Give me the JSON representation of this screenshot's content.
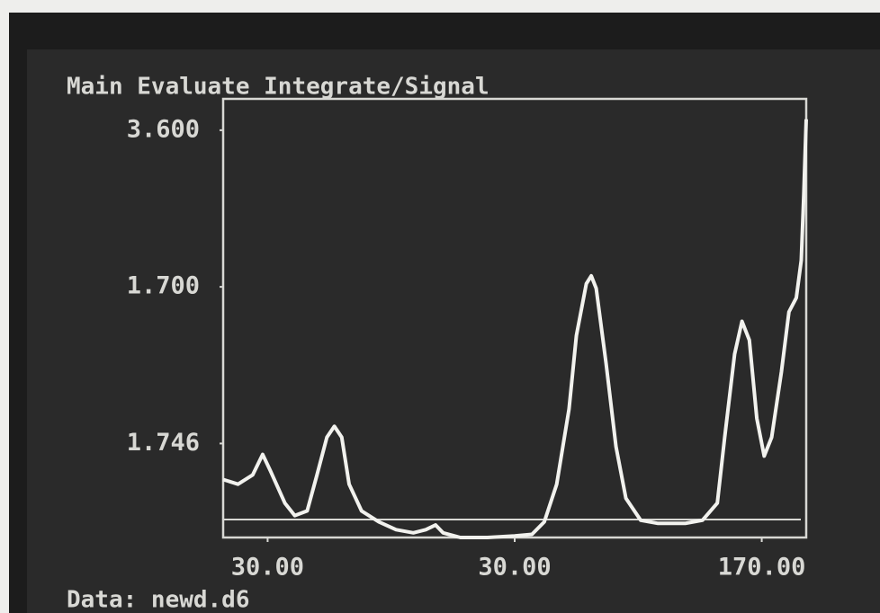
{
  "chart_data": {
    "type": "line",
    "title": "Main Evaluate Integrate/Signal",
    "annotation": "Data: newd.d6",
    "x": [
      0.82,
      0.88,
      0.94,
      0.98,
      1.01,
      1.07,
      1.11,
      1.16,
      1.2,
      1.24,
      1.27,
      1.3,
      1.33,
      1.38,
      1.45,
      1.52,
      1.59,
      1.64,
      1.68,
      1.71,
      1.78,
      1.89,
      2.0,
      2.07,
      2.12,
      2.17,
      2.22,
      2.25,
      2.29,
      2.31,
      2.33,
      2.37,
      2.41,
      2.45,
      2.51,
      2.58,
      2.69,
      2.76,
      2.82,
      2.85,
      2.89,
      2.92,
      2.95,
      2.98,
      3.01,
      3.04,
      3.08,
      3.11,
      3.14,
      3.16,
      3.17,
      3.18
    ],
    "series": [
      {
        "color": "#f2f2ee",
        "values": [
          0.77,
          0.74,
          0.8,
          0.93,
          0.83,
          0.62,
          0.54,
          0.57,
          0.8,
          1.04,
          1.11,
          1.04,
          0.74,
          0.57,
          0.5,
          0.45,
          0.43,
          0.45,
          0.48,
          0.43,
          0.4,
          0.4,
          0.41,
          0.42,
          0.5,
          0.74,
          1.22,
          1.69,
          2.02,
          2.07,
          1.99,
          1.51,
          0.98,
          0.65,
          0.51,
          0.49,
          0.49,
          0.51,
          0.62,
          1.04,
          1.57,
          1.78,
          1.66,
          1.16,
          0.92,
          1.04,
          1.46,
          1.84,
          1.93,
          2.17,
          2.59,
          3.07
        ]
      }
    ],
    "xlim": [
      0.82,
      3.18
    ],
    "xticks": [
      {
        "value": 1,
        "label": "30.00"
      },
      {
        "value": 2,
        "label": "30.00"
      },
      {
        "value": 3,
        "label": "170.00"
      }
    ],
    "ylim": [
      0.4,
      3.2
    ],
    "yticks": [
      {
        "value": 3,
        "label": "3.600"
      },
      {
        "value": 2,
        "label": "1.700"
      },
      {
        "value": 1,
        "label": "1.746"
      }
    ]
  }
}
